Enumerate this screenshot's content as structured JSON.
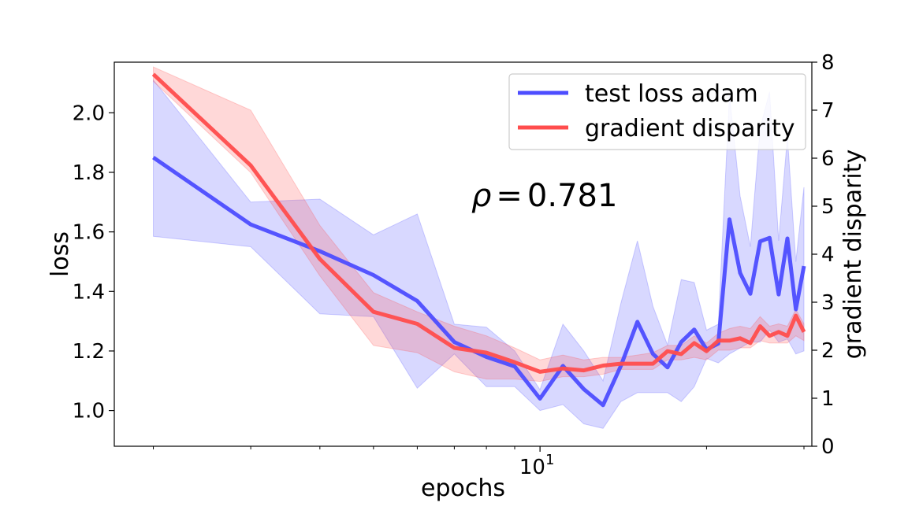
{
  "chart_data": {
    "type": "line",
    "xscale": "log",
    "xlabel": "epochs",
    "ylabel": "loss",
    "y2label": "gradient disparity",
    "xlim": [
      1.7,
      31
    ],
    "ylim": [
      0.88,
      2.17
    ],
    "y2lim": [
      0,
      8
    ],
    "yticks": [
      1.0,
      1.2,
      1.4,
      1.6,
      1.8,
      2.0
    ],
    "ytick_labels": [
      "1.0",
      "1.2",
      "1.4",
      "1.6",
      "1.8",
      "2.0"
    ],
    "y2ticks": [
      0,
      1,
      2,
      3,
      4,
      5,
      6,
      7,
      8
    ],
    "y2tick_labels": [
      "0",
      "1",
      "2",
      "3",
      "4",
      "5",
      "6",
      "7",
      "8"
    ],
    "xticks": [
      10
    ],
    "xtick_labels": [
      "10^1"
    ],
    "xtick_label_parts": {
      "base": "10",
      "exp": "1"
    },
    "legend_position": "top-right",
    "annotation": {
      "text": "ρ = 0.781",
      "symbol": "ρ",
      "eq": "=",
      "value": "0.781"
    },
    "series": [
      {
        "name": "test loss adam",
        "axis": "left",
        "color": "#4d4dff",
        "band_color": "#b3b3ff",
        "x": [
          2,
          3,
          4,
          5,
          6,
          7,
          8,
          9,
          10,
          11,
          12,
          13,
          14,
          15,
          16,
          17,
          18,
          19,
          20,
          21,
          22,
          23,
          24,
          25,
          26,
          27,
          28,
          29,
          30
        ],
        "y": [
          1.85,
          1.625,
          1.535,
          1.455,
          1.368,
          1.23,
          1.18,
          1.148,
          1.04,
          1.15,
          1.072,
          1.018,
          1.15,
          1.298,
          1.19,
          1.145,
          1.23,
          1.272,
          1.205,
          1.225,
          1.642,
          1.462,
          1.392,
          1.568,
          1.58,
          1.39,
          1.578,
          1.34,
          1.485
        ],
        "lower": [
          1.585,
          1.55,
          1.325,
          1.315,
          1.075,
          1.19,
          1.08,
          1.08,
          1.0,
          1.02,
          0.955,
          0.94,
          1.03,
          1.06,
          1.06,
          1.06,
          1.03,
          1.08,
          1.175,
          1.16,
          1.19,
          1.21,
          1.23,
          1.23,
          1.27,
          1.23,
          1.24,
          1.19,
          1.2
        ],
        "upper": [
          2.11,
          1.7,
          1.71,
          1.59,
          1.66,
          1.29,
          1.28,
          1.2,
          1.07,
          1.29,
          1.2,
          1.1,
          1.36,
          1.57,
          1.35,
          1.22,
          1.44,
          1.43,
          1.27,
          1.29,
          2.06,
          1.72,
          1.55,
          1.95,
          2.07,
          1.57,
          1.92,
          1.5,
          1.75
        ]
      },
      {
        "name": "gradient disparity",
        "axis": "right",
        "color": "#ff4d4d",
        "band_color": "#ffb3b3",
        "x": [
          2,
          3,
          4,
          5,
          6,
          7,
          8,
          9,
          10,
          11,
          12,
          13,
          14,
          15,
          16,
          17,
          18,
          19,
          20,
          21,
          22,
          23,
          24,
          25,
          26,
          27,
          28,
          29,
          30
        ],
        "y": [
          7.75,
          5.85,
          3.9,
          2.8,
          2.55,
          2.05,
          1.95,
          1.75,
          1.55,
          1.62,
          1.58,
          1.68,
          1.72,
          1.72,
          1.72,
          1.98,
          1.92,
          2.15,
          1.98,
          2.2,
          2.2,
          2.25,
          2.15,
          2.5,
          2.3,
          2.38,
          2.3,
          2.72,
          2.38
        ],
        "lower": [
          7.6,
          5.7,
          3.55,
          2.1,
          1.95,
          1.55,
          1.4,
          1.4,
          1.35,
          1.45,
          1.45,
          1.5,
          1.6,
          1.6,
          1.6,
          1.8,
          1.8,
          1.85,
          1.8,
          2.0,
          2.0,
          2.05,
          2.05,
          2.2,
          2.15,
          2.15,
          2.15,
          2.3,
          2.2
        ],
        "upper": [
          7.9,
          7.0,
          4.6,
          3.2,
          2.8,
          2.5,
          2.3,
          2.05,
          1.8,
          1.9,
          1.8,
          1.85,
          1.85,
          1.9,
          1.95,
          2.1,
          2.1,
          2.3,
          2.15,
          2.35,
          2.45,
          2.5,
          2.45,
          2.7,
          2.5,
          2.55,
          2.5,
          2.85,
          2.55
        ]
      }
    ]
  }
}
